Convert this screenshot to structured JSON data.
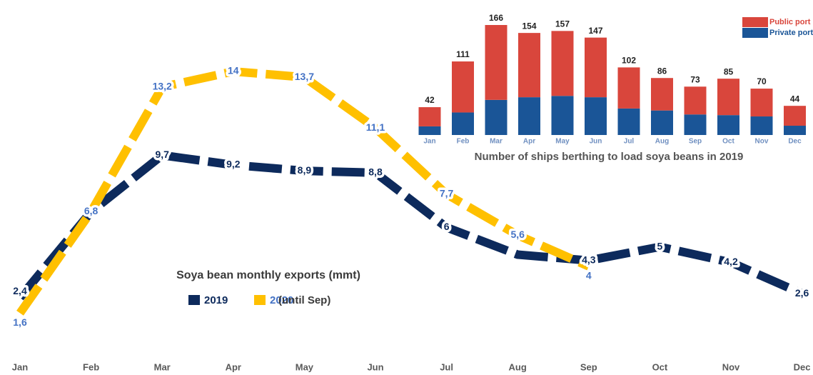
{
  "chart_data": [
    {
      "type": "line",
      "title": "Soya bean monthly exports (mmt)",
      "legend_note": "(until Sep)",
      "categories": [
        "Jan",
        "Feb",
        "Mar",
        "Apr",
        "May",
        "Jun",
        "Jul",
        "Aug",
        "Sep",
        "Oct",
        "Nov",
        "Dec"
      ],
      "series": [
        {
          "name": "2019",
          "color": "#0d2a5c",
          "label_color": "#0d2a5c",
          "values": [
            2.4,
            6.8,
            9.7,
            9.2,
            8.9,
            8.8,
            6,
            4.6,
            4.3,
            5,
            4.2,
            2.6
          ],
          "value_labels": [
            "2,4",
            null,
            "9,7",
            "9,2",
            "8,9",
            "8,8",
            "6",
            null,
            "4,3",
            "5",
            "4,2",
            "2,6"
          ]
        },
        {
          "name": "2020",
          "color": "#ffc000",
          "label_color": "#4472c4",
          "values": [
            1.6,
            6.8,
            13.2,
            14,
            13.7,
            11.1,
            7.7,
            5.6,
            4,
            null,
            null,
            null
          ],
          "value_labels": [
            "1,6",
            "6,8",
            "13,2",
            "14",
            "13,7",
            "11,1",
            "7,7",
            "5,6",
            "4",
            null,
            null,
            null
          ]
        }
      ]
    },
    {
      "type": "stacked_bar",
      "title": "Number of ships berthing to load soya beans in 2019",
      "categories": [
        "Jan",
        "Feb",
        "Mar",
        "Apr",
        "May",
        "Jun",
        "Jul",
        "Aug",
        "Sep",
        "Oct",
        "Nov",
        "Dec"
      ],
      "series": [
        {
          "name": "Private port",
          "color": "#1a5597",
          "values": [
            13,
            34,
            53,
            57,
            59,
            57,
            40,
            37,
            31,
            30,
            28,
            14
          ]
        },
        {
          "name": "Public port",
          "color": "#d9463c",
          "values": [
            29,
            77,
            113,
            97,
            98,
            90,
            62,
            49,
            42,
            55,
            42,
            30
          ]
        }
      ],
      "total_labels": [
        "42",
        "111",
        "166",
        "154",
        "157",
        "147",
        "102",
        "86",
        "73",
        "85",
        "70",
        "44"
      ]
    }
  ]
}
